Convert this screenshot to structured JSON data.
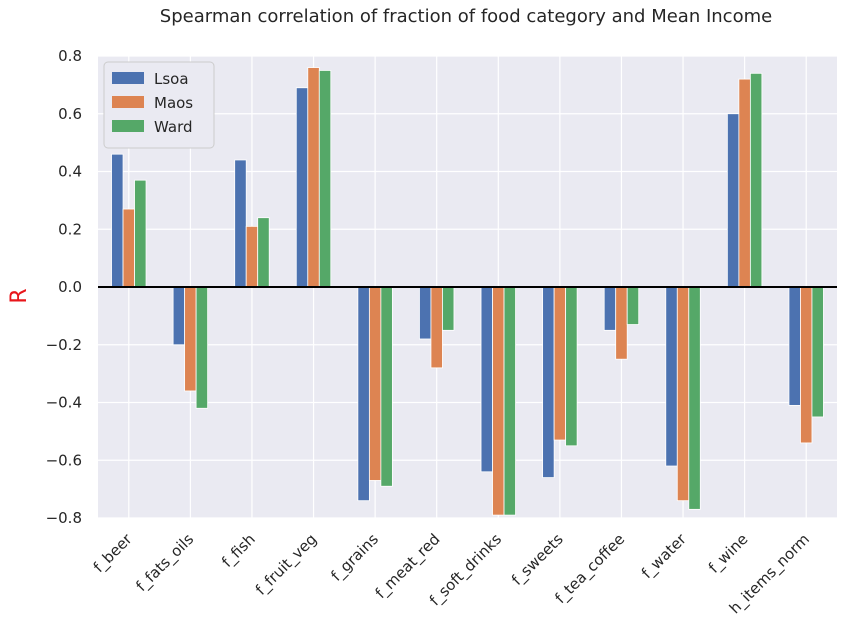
{
  "chart_data": {
    "type": "bar",
    "title": "Spearman correlation of fraction of food category and Mean Income",
    "xlabel": "",
    "ylabel": "R",
    "ylabel_color": "#e8161b",
    "ylim": [
      -0.8,
      0.8
    ],
    "yticks": [
      0.8,
      0.6,
      0.4,
      0.2,
      0.0,
      -0.2,
      -0.4,
      -0.6,
      -0.8
    ],
    "ytick_labels": [
      "0.8",
      "0.6",
      "0.4",
      "0.2",
      "0.0",
      "−0.2",
      "−0.4",
      "−0.6",
      "−0.8"
    ],
    "grid": true,
    "background": "#eaeaf2",
    "zero_line": true,
    "legend_position": "top-left",
    "categories": [
      "f_beer",
      "f_fats_oils",
      "f_fish",
      "f_fruit_veg",
      "f_grains",
      "f_meat_red",
      "f_soft_drinks",
      "f_sweets",
      "f_tea_coffee",
      "f_water",
      "f_wine",
      "h_items_norm"
    ],
    "series": [
      {
        "name": "Lsoa",
        "color": "#4c72b0",
        "values": [
          0.46,
          -0.2,
          0.44,
          0.69,
          -0.74,
          -0.18,
          -0.64,
          -0.66,
          -0.15,
          -0.62,
          0.6,
          -0.41
        ]
      },
      {
        "name": "Maos",
        "color": "#dd8452",
        "values": [
          0.27,
          -0.36,
          0.21,
          0.76,
          -0.67,
          -0.28,
          -0.79,
          -0.53,
          -0.25,
          -0.74,
          0.72,
          -0.54
        ]
      },
      {
        "name": "Ward",
        "color": "#55a868",
        "values": [
          0.37,
          -0.42,
          0.24,
          0.75,
          -0.69,
          -0.15,
          -0.79,
          -0.55,
          -0.13,
          -0.77,
          0.74,
          -0.45
        ]
      }
    ]
  }
}
